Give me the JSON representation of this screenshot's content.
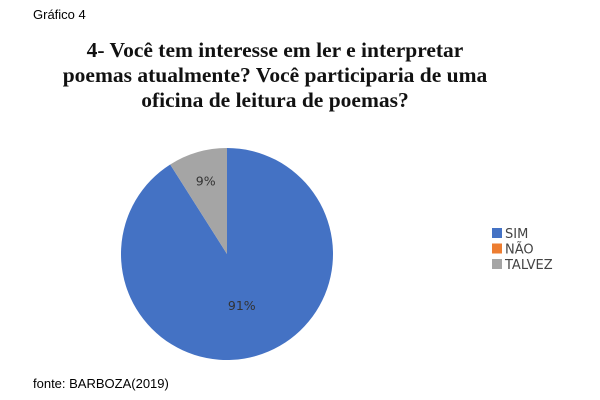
{
  "figure_label": "Gráfico 4",
  "source": "fonte: BARBOZA(2019)",
  "chart_data": {
    "type": "pie",
    "title_lines": [
      "4-  Você tem interesse em ler e interpretar",
      "poemas atualmente? Você participaria de uma",
      "oficina de leitura de poemas?"
    ],
    "categories": [
      "SIM",
      "NÃO",
      "TALVEZ"
    ],
    "values": [
      91,
      0,
      9
    ],
    "data_labels": [
      "91%",
      "",
      "9%"
    ],
    "colors": [
      "#4472c4",
      "#ed7d31",
      "#a5a5a5"
    ],
    "legend_position": "right"
  }
}
